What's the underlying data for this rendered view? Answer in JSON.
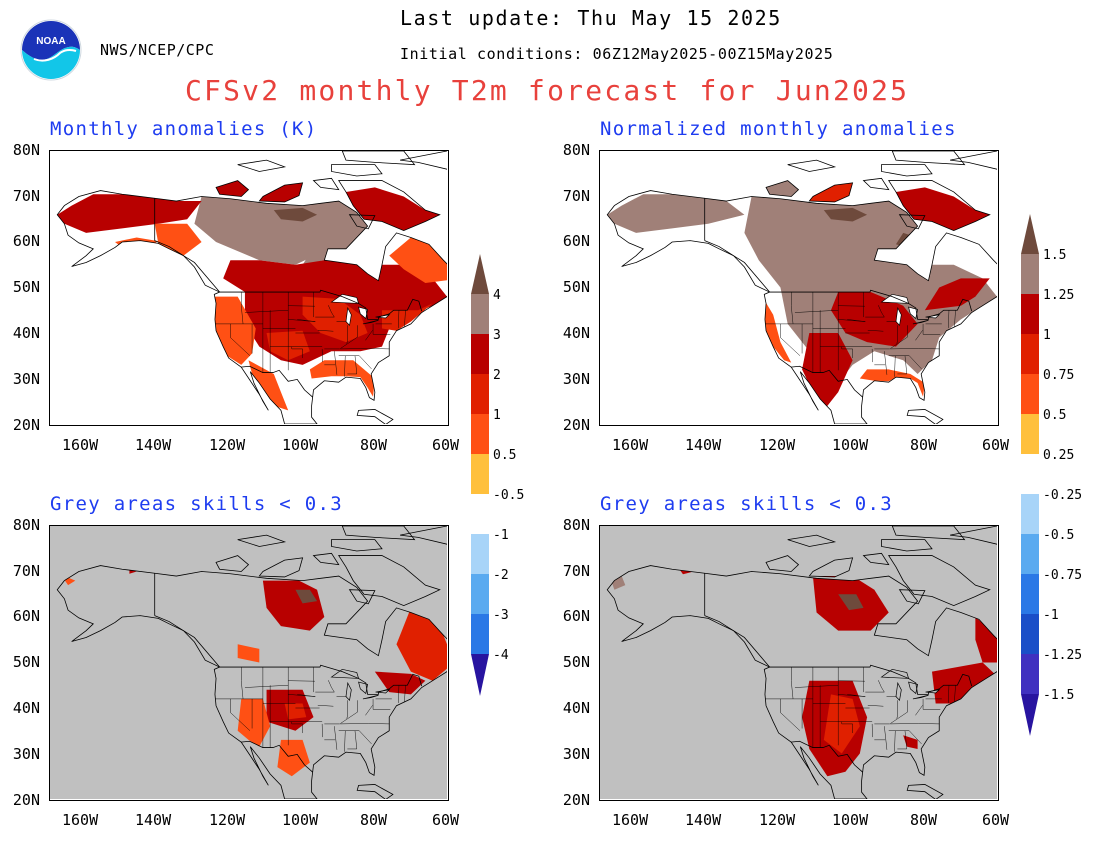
{
  "header": {
    "last_update": "Last update: Thu May 15 2025",
    "initial_conditions": "Initial conditions: 06Z12May2025-00Z15May2025",
    "org": "NWS/NCEP/CPC",
    "title": "CFSv2 monthly T2m forecast for Jun2025",
    "logo_text": "NOAA"
  },
  "panels": [
    {
      "title": "Monthly anomalies (K)",
      "shading": "full"
    },
    {
      "title": "Normalized monthly anomalies",
      "shading": "full"
    },
    {
      "title": "Grey areas skills < 0.3",
      "shading": "skill-masked"
    },
    {
      "title": "Grey areas skills < 0.3",
      "shading": "skill-masked"
    }
  ],
  "axes": {
    "lat_labels": [
      "80N",
      "70N",
      "60N",
      "50N",
      "40N",
      "30N",
      "20N"
    ],
    "lon_labels": [
      "160W",
      "140W",
      "120W",
      "100W",
      "80W",
      "60W"
    ]
  },
  "colorbars": [
    {
      "name": "anomaly-K",
      "labels": [
        "4",
        "3",
        "2",
        "1",
        "0.5",
        "-0.5",
        "-1",
        "-2",
        "-3",
        "-4"
      ]
    },
    {
      "name": "normalized",
      "labels": [
        "1.5",
        "1.25",
        "1",
        "0.75",
        "0.5",
        "0.25",
        "-0.25",
        "-0.5",
        "-0.75",
        "-1",
        "-1.25",
        "-1.5"
      ]
    }
  ],
  "colors": {
    "title_red": "#e8413c",
    "panel_blue": "#1e3cf0",
    "skill_grey": "#c0c0c0",
    "warm_ramp": [
      "#ffc03c",
      "#ff5014",
      "#e02000",
      "#b80000",
      "#a08078",
      "#6e4a3c"
    ],
    "cool_ramp": [
      "#a8d4f8",
      "#5aaaf0",
      "#2a78e6",
      "#1a4ec8",
      "#4030c0",
      "#2814a0"
    ]
  }
}
